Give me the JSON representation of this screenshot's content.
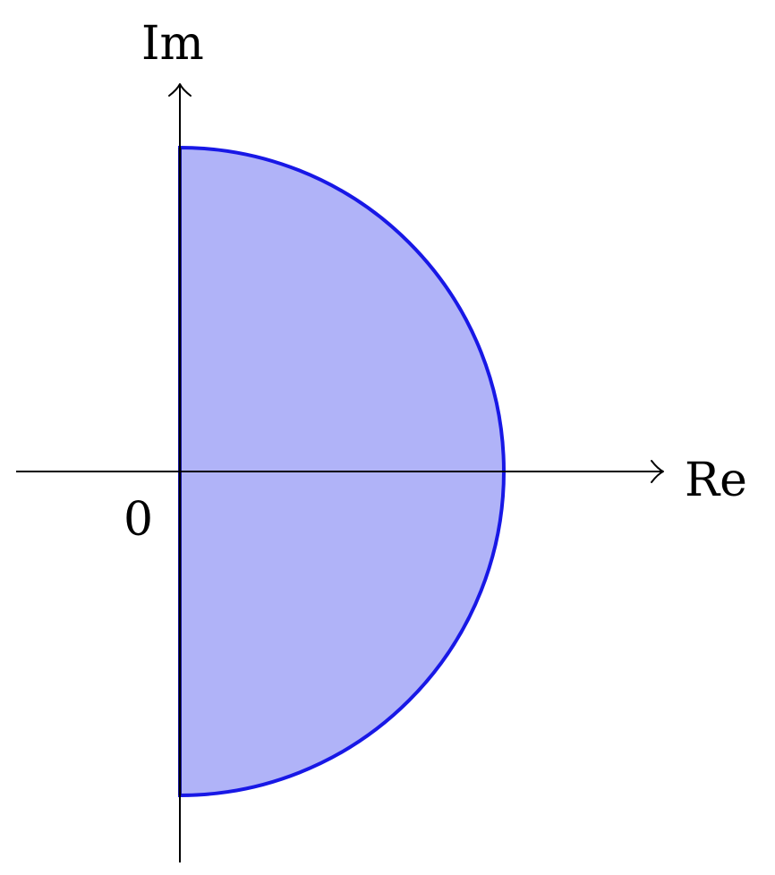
{
  "labels": {
    "imaginary_axis": "Im",
    "real_axis": "Re",
    "origin": "0"
  },
  "colors": {
    "region_fill": "#b0b3f8",
    "region_stroke": "#1818e6",
    "diameter_stroke": "#12129a",
    "axes": "#000000"
  },
  "region": {
    "shape": "closed right half-disk",
    "center": [
      0,
      0
    ],
    "radius": 1
  }
}
